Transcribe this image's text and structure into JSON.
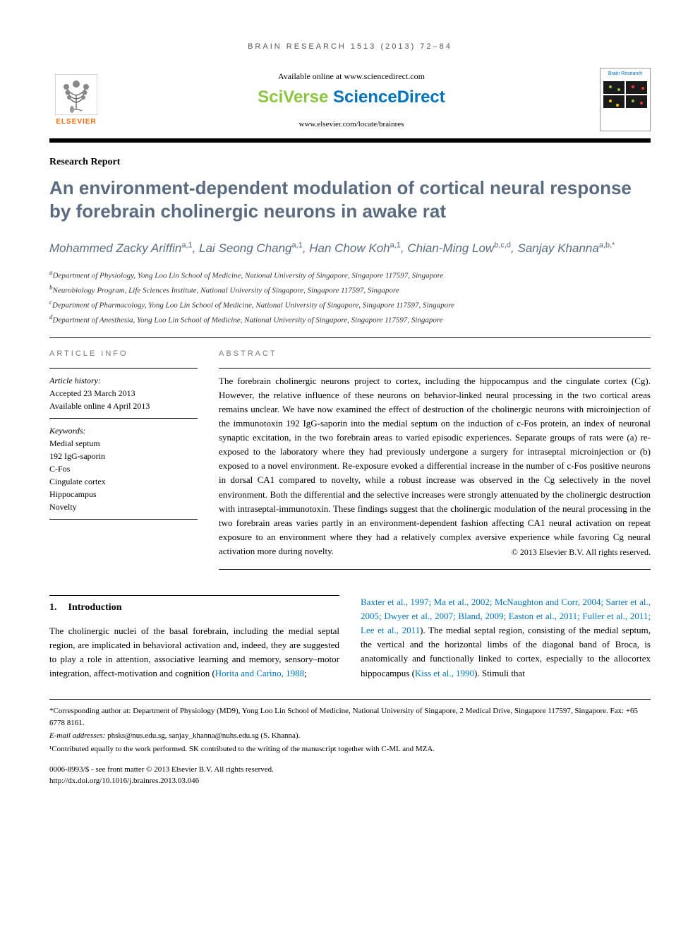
{
  "running_head": "BRAIN RESEARCH 1513 (2013) 72–84",
  "masthead": {
    "elsevier": "ELSEVIER",
    "available_online": "Available online at www.sciencedirect.com",
    "sciverse_1": "SciVerse ",
    "sciverse_2": "ScienceDirect",
    "journal_url": "www.elsevier.com/locate/brainres",
    "cover_title": "Brain Research"
  },
  "article_type": "Research Report",
  "title": "An environment-dependent modulation of cortical neural response by forebrain cholinergic neurons in awake rat",
  "authors_html": "Mohammed Zacky Ariffin<sup>a,1</sup>, Lai Seong Chang<sup>a,1</sup>, Han Chow Koh<sup>a,1</sup>, Chian-Ming Low<sup>b,c,d</sup>, Sanjay Khanna<sup>a,b,*</sup>",
  "affiliations": [
    {
      "sup": "a",
      "text": "Department of Physiology, Yong Loo Lin School of Medicine, National University of Singapore, Singapore 117597, Singapore"
    },
    {
      "sup": "b",
      "text": "Neurobiology Program, Life Sciences Institute, National University of Singapore, Singapore 117597, Singapore"
    },
    {
      "sup": "c",
      "text": "Department of Pharmacology, Yong Loo Lin School of Medicine, National University of Singapore, Singapore 117597, Singapore"
    },
    {
      "sup": "d",
      "text": "Department of Anesthesia, Yong Loo Lin School of Medicine, National University of Singapore, Singapore 117597, Singapore"
    }
  ],
  "article_info": {
    "head": "ARTICLE INFO",
    "history_label": "Article history:",
    "accepted": "Accepted 23 March 2013",
    "online": "Available online 4 April 2013",
    "keywords_label": "Keywords:",
    "keywords": [
      "Medial septum",
      "192 IgG-saporin",
      "C-Fos",
      "Cingulate cortex",
      "Hippocampus",
      "Novelty"
    ]
  },
  "abstract": {
    "head": "ABSTRACT",
    "text": "The forebrain cholinergic neurons project to cortex, including the hippocampus and the cingulate cortex (Cg). However, the relative influence of these neurons on behavior-linked neural processing in the two cortical areas remains unclear. We have now examined the effect of destruction of the cholinergic neurons with microinjection of the immunotoxin 192 IgG-saporin into the medial septum on the induction of c-Fos protein, an index of neuronal synaptic excitation, in the two forebrain areas to varied episodic experiences. Separate groups of rats were (a) re-exposed to the laboratory where they had previously undergone a surgery for intraseptal microinjection or (b) exposed to a novel environment. Re-exposure evoked a differential increase in the number of c-Fos positive neurons in dorsal CA1 compared to novelty, while a robust increase was observed in the Cg selectively in the novel environment. Both the differential and the selective increases were strongly attenuated by the cholinergic destruction with intraseptal-immunotoxin. These findings suggest that the cholinergic modulation of the neural processing in the two forebrain areas varies partly in an environment-dependent fashion affecting CA1 neural activation on repeat exposure to an environment where they had a relatively complex aversive experience while favoring Cg neural activation more during novelty.",
    "copyright": "© 2013 Elsevier B.V. All rights reserved."
  },
  "intro": {
    "number": "1.",
    "heading": "Introduction",
    "col1_text": "The cholinergic nuclei of the basal forebrain, including the medial septal region, are implicated in behavioral activation and, indeed, they are suggested to play a role in attention, associative learning and memory, sensory–motor integration, affect-motivation and cognition (",
    "col1_cite": "Horita and Carino, 1988",
    "col1_suffix": ";",
    "col2_cites": "Baxter et al., 1997; Ma et al., 2002; McNaughton and Corr, 2004; Sarter et al., 2005; Dwyer et al., 2007; Bland, 2009; Easton et al., 2011; Fuller et al., 2011; Lee et al., 2011",
    "col2_text1": "). The medial septal region, consisting of the medial septum, the vertical and the horizontal limbs of the diagonal band of Broca, is anatomically and functionally linked to cortex, especially to the allocortex hippocampus (",
    "col2_cite2": "Kiss et al., 1990",
    "col2_text2": "). Stimuli that"
  },
  "footnotes": {
    "corresponding": "*Corresponding author at: Department of Physiology (MD9), Yong Loo Lin School of Medicine, National University of Singapore, 2 Medical Drive, Singapore 117597, Singapore. Fax: +65 6778 8161.",
    "email_label": "E-mail addresses:",
    "emails": " phsks@nus.edu.sg, sanjay_khanna@nuhs.edu.sg (S. Khanna).",
    "contrib": "¹Contributed equally to the work performed. SK contributed to the writing of the manuscript together with C-ML and MZA."
  },
  "imprint": {
    "line1": "0006-8993/$ - see front matter © 2013 Elsevier B.V. All rights reserved.",
    "line2": "http://dx.doi.org/10.1016/j.brainres.2013.03.046"
  },
  "colors": {
    "heading_blue_gray": "#5b6b7f",
    "elsevier_orange": "#ff6600",
    "link_blue": "#0072bc",
    "sciverse_green": "#8cc63f"
  },
  "typography": {
    "title_fontsize_pt": 20,
    "authors_fontsize_pt": 13,
    "body_fontsize_pt": 10,
    "running_head_letterspacing": 3
  }
}
